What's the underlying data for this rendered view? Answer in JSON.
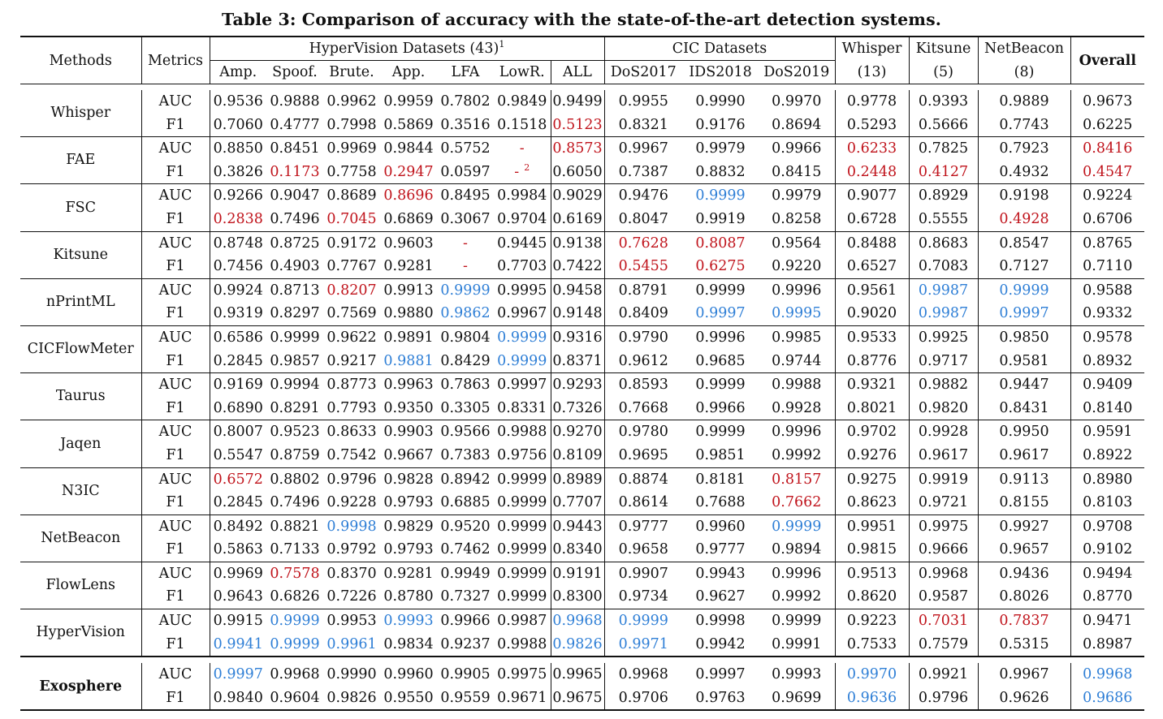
{
  "caption": "Table 3: Comparison of accuracy with the state-of-the-art detection systems.",
  "header": {
    "methods": "Methods",
    "metrics": "Metrics",
    "hypervision_group": "HyperVision Datasets (43)",
    "hypervision_sup": "1",
    "cic_group": "CIC Datasets",
    "whisper_group": "Whisper",
    "whisper_count": "(13)",
    "kitsune_group": "Kitsune",
    "kitsune_count": "(5)",
    "netbeacon_group": "NetBeacon",
    "netbeacon_count": "(8)",
    "overall": "Overall",
    "sub": [
      "Amp.",
      "Spoof.",
      "Brute.",
      "App.",
      "LFA",
      "LowR.",
      "ALL",
      "DoS2017",
      "IDS2018",
      "DoS2019"
    ]
  },
  "colors": {
    "red": "#c0141c",
    "blue": "#2f7fd6"
  },
  "rows": [
    {
      "method": "Whisper",
      "auc": [
        "0.9536",
        "0.9888",
        "0.9962",
        "0.9959",
        "0.7802",
        "0.9849",
        "0.9499",
        "0.9955",
        "0.9990",
        "0.9970",
        "0.9778",
        "0.9393",
        "0.9889",
        "0.9673"
      ],
      "f1": [
        "0.7060",
        "0.4777",
        "0.7998",
        "0.5869",
        "0.3516",
        "0.1518",
        "0.5123",
        "0.8321",
        "0.9176",
        "0.8694",
        "0.5293",
        "0.5666",
        "0.7743",
        "0.6225"
      ]
    },
    {
      "method": "FAE",
      "auc": [
        "0.8850",
        "0.8451",
        "0.9969",
        "0.9844",
        "0.5752",
        "-",
        "0.8573",
        "0.9967",
        "0.9979",
        "0.9966",
        "0.6233",
        "0.7825",
        "0.7923",
        "0.8416"
      ],
      "f1": [
        "0.3826",
        "0.1173",
        "0.7758",
        "0.2947",
        "0.0597",
        "-",
        "0.6050",
        "0.7387",
        "0.8832",
        "0.8415",
        "0.2448",
        "0.4127",
        "0.4932",
        "0.4547"
      ],
      "f1_lowr_sup": "2"
    },
    {
      "method": "FSC",
      "auc": [
        "0.9266",
        "0.9047",
        "0.8689",
        "0.8696",
        "0.8495",
        "0.9984",
        "0.9029",
        "0.9476",
        "0.9999",
        "0.9979",
        "0.9077",
        "0.8929",
        "0.9198",
        "0.9224"
      ],
      "f1": [
        "0.2838",
        "0.7496",
        "0.7045",
        "0.6869",
        "0.3067",
        "0.9704",
        "0.6169",
        "0.8047",
        "0.9919",
        "0.8258",
        "0.6728",
        "0.5555",
        "0.4928",
        "0.6706"
      ]
    },
    {
      "method": "Kitsune",
      "auc": [
        "0.8748",
        "0.8725",
        "0.9172",
        "0.9603",
        "-",
        "0.9445",
        "0.9138",
        "0.7628",
        "0.8087",
        "0.9564",
        "0.8488",
        "0.8683",
        "0.8547",
        "0.8765"
      ],
      "f1": [
        "0.7456",
        "0.4903",
        "0.7767",
        "0.9281",
        "-",
        "0.7703",
        "0.7422",
        "0.5455",
        "0.6275",
        "0.9220",
        "0.6527",
        "0.7083",
        "0.7127",
        "0.7110"
      ]
    },
    {
      "method": "nPrintML",
      "auc": [
        "0.9924",
        "0.8713",
        "0.8207",
        "0.9913",
        "0.9999",
        "0.9995",
        "0.9458",
        "0.8791",
        "0.9999",
        "0.9996",
        "0.9561",
        "0.9987",
        "0.9999",
        "0.9588"
      ],
      "f1": [
        "0.9319",
        "0.8297",
        "0.7569",
        "0.9880",
        "0.9862",
        "0.9967",
        "0.9148",
        "0.8409",
        "0.9997",
        "0.9995",
        "0.9020",
        "0.9987",
        "0.9997",
        "0.9332"
      ]
    },
    {
      "method": "CICFlowMeter",
      "auc": [
        "0.6586",
        "0.9999",
        "0.9622",
        "0.9891",
        "0.9804",
        "0.9999",
        "0.9316",
        "0.9790",
        "0.9996",
        "0.9985",
        "0.9533",
        "0.9925",
        "0.9850",
        "0.9578"
      ],
      "f1": [
        "0.2845",
        "0.9857",
        "0.9217",
        "0.9881",
        "0.8429",
        "0.9999",
        "0.8371",
        "0.9612",
        "0.9685",
        "0.9744",
        "0.8776",
        "0.9717",
        "0.9581",
        "0.8932"
      ]
    },
    {
      "method": "Taurus",
      "auc": [
        "0.9169",
        "0.9994",
        "0.8773",
        "0.9963",
        "0.7863",
        "0.9997",
        "0.9293",
        "0.8593",
        "0.9999",
        "0.9988",
        "0.9321",
        "0.9882",
        "0.9447",
        "0.9409"
      ],
      "f1": [
        "0.6890",
        "0.8291",
        "0.7793",
        "0.9350",
        "0.3305",
        "0.8331",
        "0.7326",
        "0.7668",
        "0.9966",
        "0.9928",
        "0.8021",
        "0.9820",
        "0.8431",
        "0.8140"
      ]
    },
    {
      "method": "Jaqen",
      "auc": [
        "0.8007",
        "0.9523",
        "0.8633",
        "0.9903",
        "0.9566",
        "0.9988",
        "0.9270",
        "0.9780",
        "0.9999",
        "0.9996",
        "0.9702",
        "0.9928",
        "0.9950",
        "0.9591"
      ],
      "f1": [
        "0.5547",
        "0.8759",
        "0.7542",
        "0.9667",
        "0.7383",
        "0.9756",
        "0.8109",
        "0.9695",
        "0.9851",
        "0.9992",
        "0.9276",
        "0.9617",
        "0.9617",
        "0.8922"
      ]
    },
    {
      "method": "N3IC",
      "auc": [
        "0.6572",
        "0.8802",
        "0.9796",
        "0.9828",
        "0.8942",
        "0.9999",
        "0.8989",
        "0.8874",
        "0.8181",
        "0.8157",
        "0.9275",
        "0.9919",
        "0.9113",
        "0.8980"
      ],
      "f1": [
        "0.2845",
        "0.7496",
        "0.9228",
        "0.9793",
        "0.6885",
        "0.9999",
        "0.7707",
        "0.8614",
        "0.7688",
        "0.7662",
        "0.8623",
        "0.9721",
        "0.8155",
        "0.8103"
      ]
    },
    {
      "method": "NetBeacon",
      "auc": [
        "0.8492",
        "0.8821",
        "0.9998",
        "0.9829",
        "0.9520",
        "0.9999",
        "0.9443",
        "0.9777",
        "0.9960",
        "0.9999",
        "0.9951",
        "0.9975",
        "0.9927",
        "0.9708"
      ],
      "f1": [
        "0.5863",
        "0.7133",
        "0.9792",
        "0.9793",
        "0.7462",
        "0.9999",
        "0.8340",
        "0.9658",
        "0.9777",
        "0.9894",
        "0.9815",
        "0.9666",
        "0.9657",
        "0.9102"
      ]
    },
    {
      "method": "FlowLens",
      "auc": [
        "0.9969",
        "0.7578",
        "0.8370",
        "0.9281",
        "0.9949",
        "0.9999",
        "0.9191",
        "0.9907",
        "0.9943",
        "0.9996",
        "0.9513",
        "0.9968",
        "0.9436",
        "0.9494"
      ],
      "f1": [
        "0.9643",
        "0.6826",
        "0.7226",
        "0.8780",
        "0.7327",
        "0.9999",
        "0.8300",
        "0.9734",
        "0.9627",
        "0.9992",
        "0.8620",
        "0.9587",
        "0.8026",
        "0.8770"
      ]
    },
    {
      "method": "HyperVision",
      "auc": [
        "0.9915",
        "0.9999",
        "0.9953",
        "0.9993",
        "0.9966",
        "0.9987",
        "0.9968",
        "0.9999",
        "0.9998",
        "0.9999",
        "0.9223",
        "0.7031",
        "0.7837",
        "0.9471"
      ],
      "f1": [
        "0.9941",
        "0.9999",
        "0.9961",
        "0.9834",
        "0.9237",
        "0.9988",
        "0.9826",
        "0.9971",
        "0.9942",
        "0.9991",
        "0.7533",
        "0.7579",
        "0.5315",
        "0.8987"
      ]
    },
    {
      "method": "Exosphere",
      "auc": [
        "0.9997",
        "0.9968",
        "0.9990",
        "0.9960",
        "0.9905",
        "0.9975",
        "0.9965",
        "0.9968",
        "0.9997",
        "0.9993",
        "0.9970",
        "0.9921",
        "0.9967",
        "0.9968"
      ],
      "f1": [
        "0.9840",
        "0.9604",
        "0.9826",
        "0.9550",
        "0.9559",
        "0.9671",
        "0.9675",
        "0.9706",
        "0.9763",
        "0.9699",
        "0.9636",
        "0.9796",
        "0.9626",
        "0.9686"
      ]
    }
  ]
}
